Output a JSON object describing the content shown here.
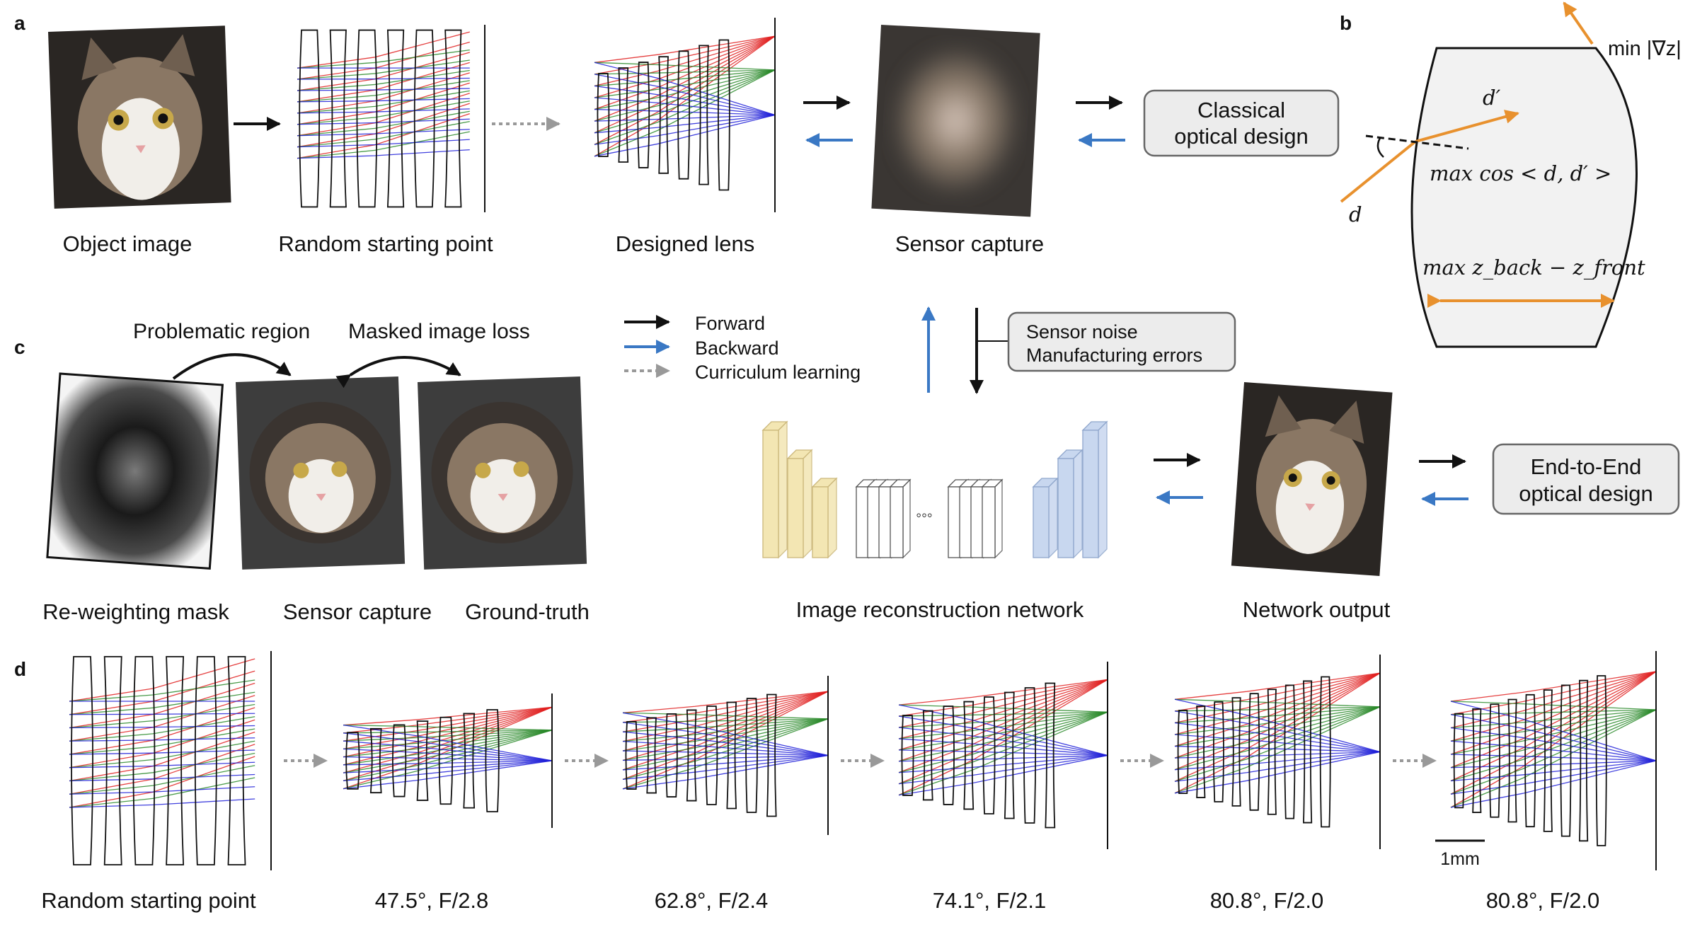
{
  "panels": {
    "a": "a",
    "b": "b",
    "c": "c",
    "d": "d"
  },
  "row_a": {
    "object_image": "Object image",
    "random_start": "Random starting point",
    "designed_lens": "Designed lens",
    "sensor_capture": "Sensor capture",
    "classical_design_line1": "Classical",
    "classical_design_line2": "optical design"
  },
  "panel_b": {
    "min_grad": "min |∇z|",
    "d_prime": "d′",
    "d": "d",
    "max_cos": "max cos < d, d′ >",
    "max_thickness": "max z_back − z_front"
  },
  "panel_c": {
    "problematic_region": "Problematic region",
    "masked_loss": "Masked image loss",
    "reweighting_mask": "Re-weighting mask",
    "sensor_capture": "Sensor capture",
    "ground_truth": "Ground-truth"
  },
  "legend": {
    "forward": "Forward",
    "backward": "Backward",
    "curriculum": "Curriculum learning"
  },
  "network": {
    "noise_line1": "Sensor noise",
    "noise_line2": "Manufacturing errors",
    "reconstruction": "Image reconstruction network",
    "output": "Network output",
    "e2e_line1": "End-to-End",
    "e2e_line2": "optical design"
  },
  "row_d": {
    "stages": [
      "Random starting point",
      "47.5°, F/2.8",
      "62.8°, F/2.4",
      "74.1°, F/2.1",
      "80.8°, F/2.0",
      "80.8°, F/2.0"
    ],
    "scale_bar": "1mm"
  },
  "colors": {
    "forward": "#111111",
    "backward": "#3a78c4",
    "curriculum": "#999999",
    "ray_red": "#e02020",
    "ray_green": "#2a8a2a",
    "ray_blue": "#2020d8",
    "orange": "#e8912e",
    "box_fill": "#ececec",
    "encoder": "#f3e6b3",
    "decoder": "#c8d7ef"
  }
}
